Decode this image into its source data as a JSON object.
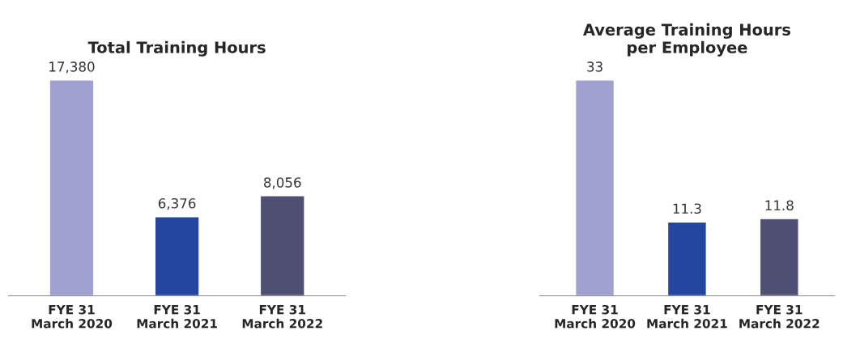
{
  "chart_data": [
    {
      "type": "bar",
      "title": "Total Training Hours",
      "categories": [
        "FYE 31\nMarch 2020",
        "FYE 31\nMarch 2021",
        "FYE 31\nMarch 2022"
      ],
      "values": [
        17380,
        6376,
        8056
      ],
      "colors": [
        "#a1a1d1",
        "#2446a0",
        "#4f4f73"
      ],
      "value_labels": [
        "17,380",
        "6,376",
        "8,056"
      ]
    },
    {
      "type": "bar",
      "title": "Average Training Hours\nper Employee",
      "categories": [
        "FYE 31\nMarch 2020",
        "FYE 31\nMarch 2021",
        "FYE 31\nMarch 2022"
      ],
      "values": [
        33,
        11.3,
        11.8
      ],
      "colors": [
        "#a1a1d1",
        "#2446a0",
        "#4f4f73"
      ],
      "data_labels": true
    }
  ]
}
